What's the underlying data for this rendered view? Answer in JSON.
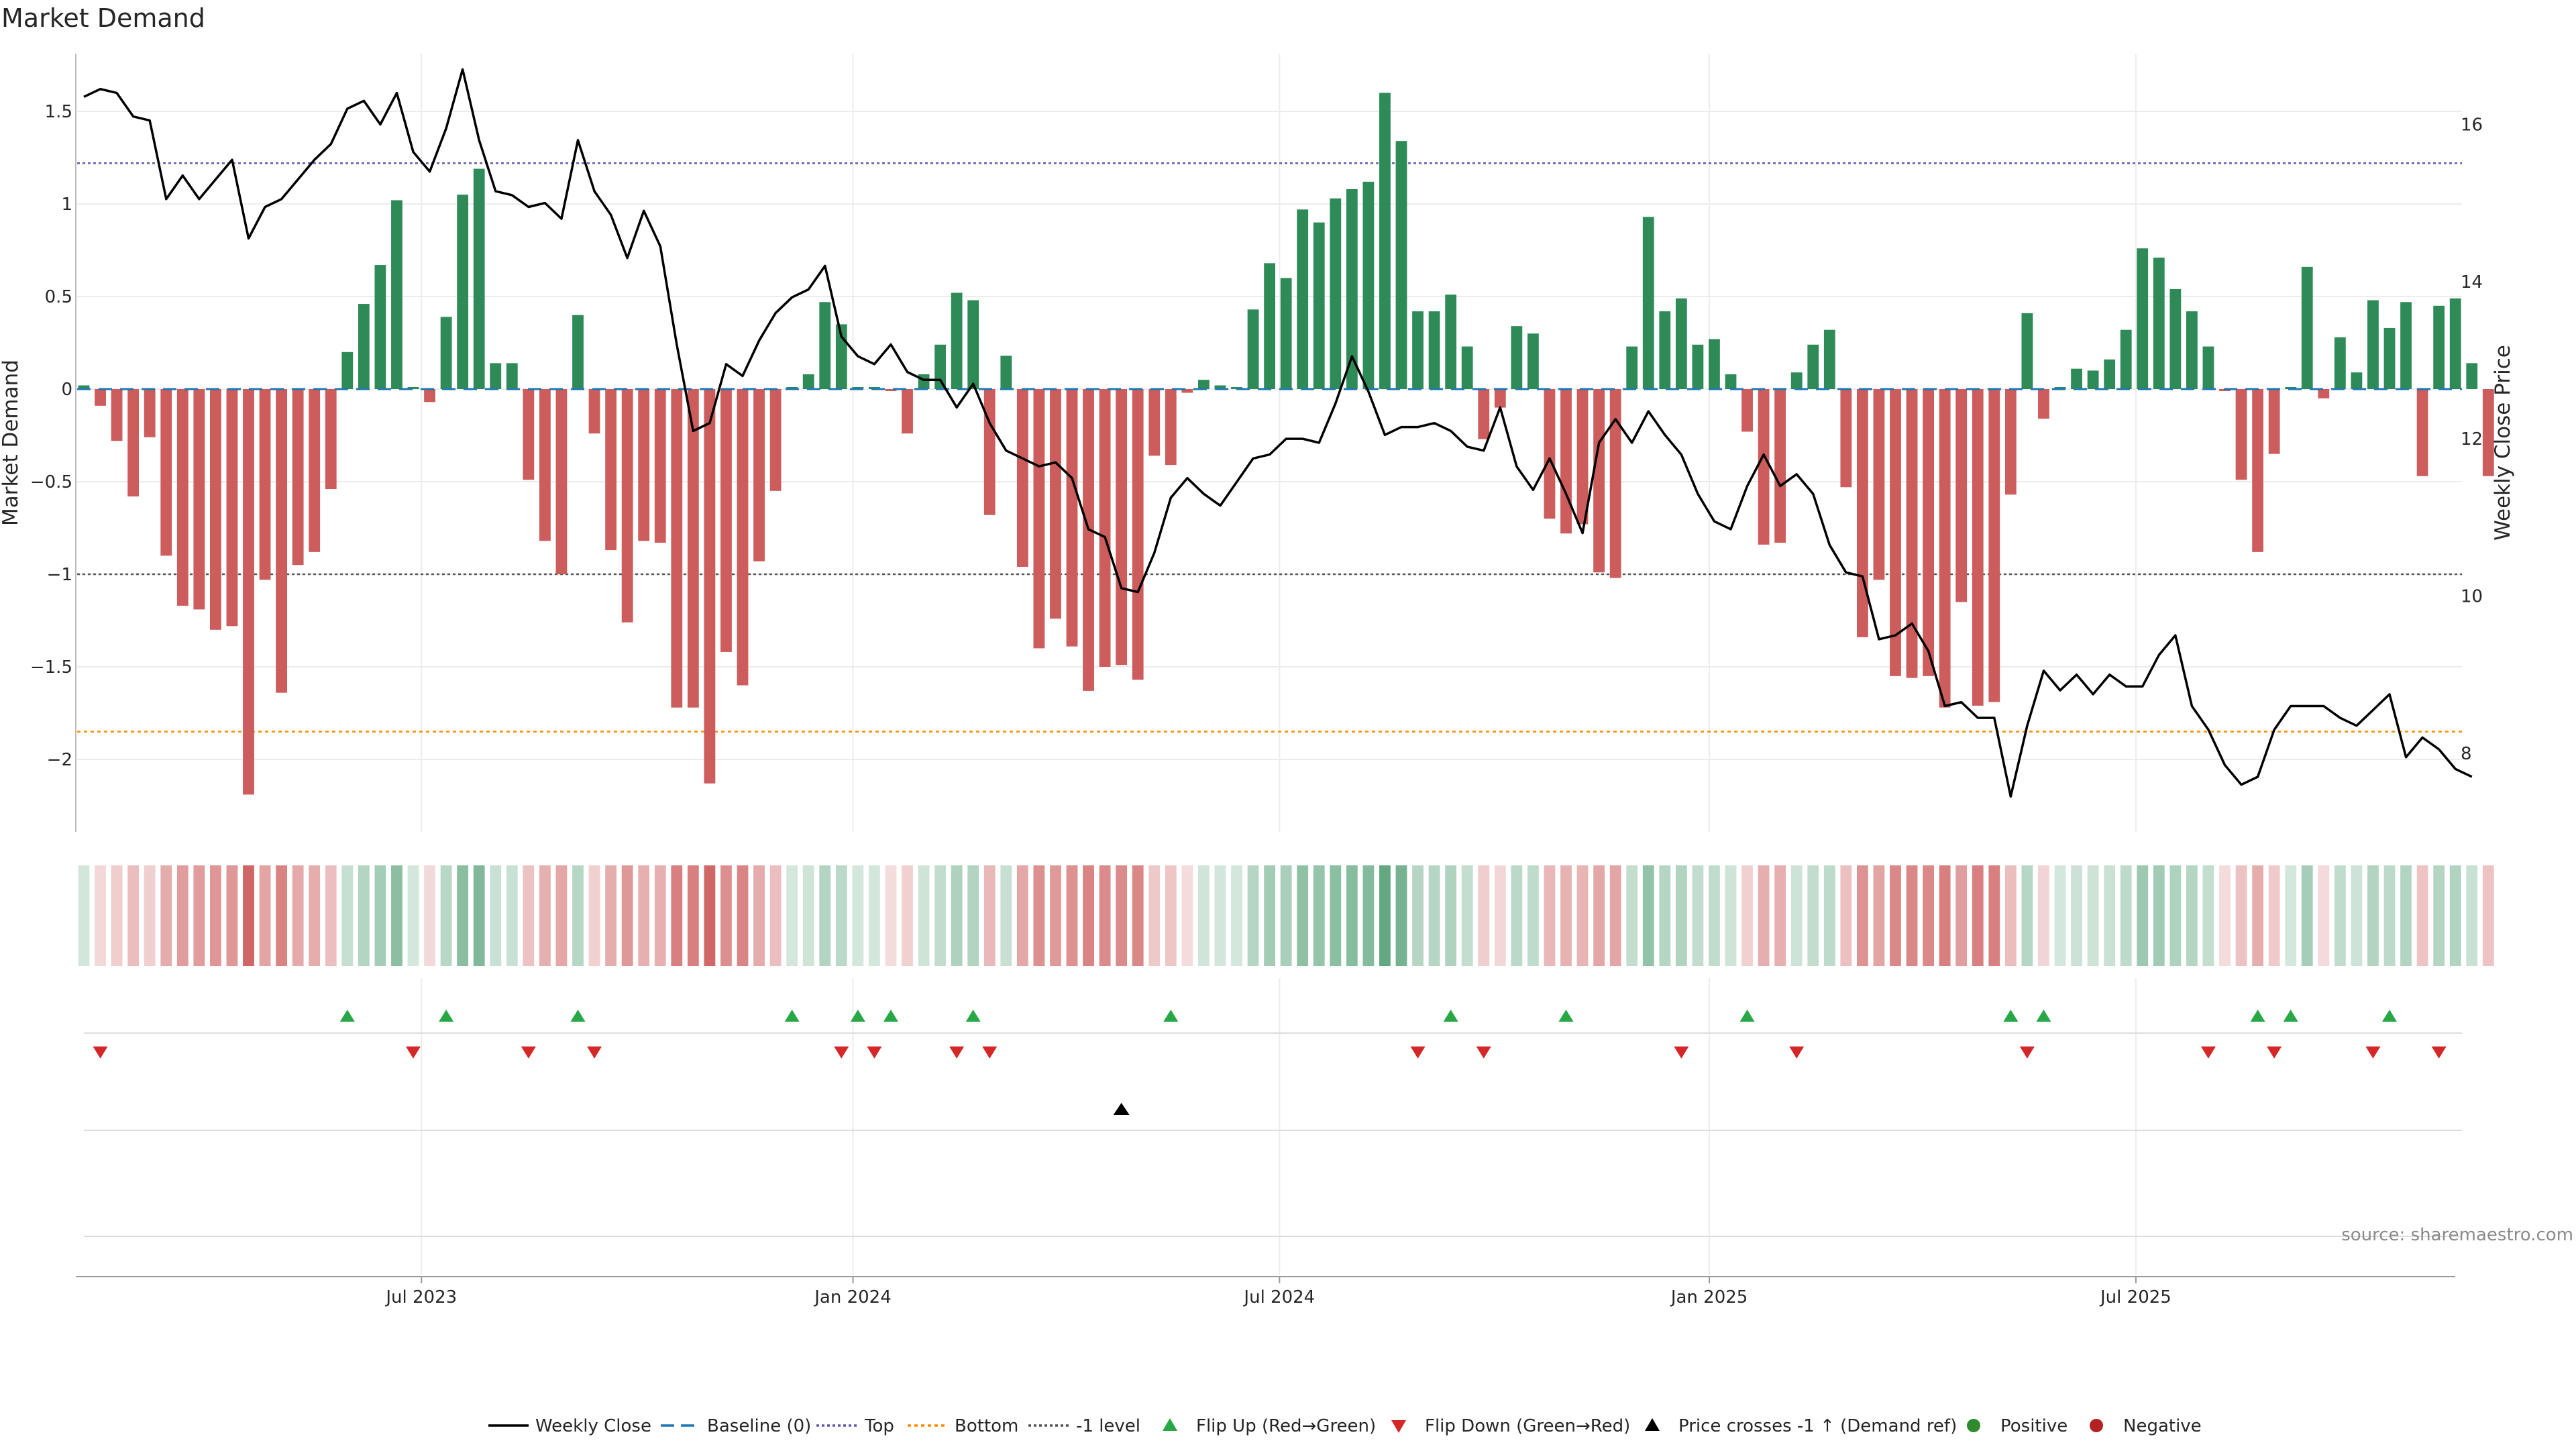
{
  "chart_data": {
    "type": "bar+line",
    "title": "Market Demand",
    "ylabel": "Market Demand",
    "y2label": "Weekly Close Price",
    "ylim": [
      -2.4,
      1.8
    ],
    "y2lim": [
      7.0,
      16.9
    ],
    "yticks": [
      "1.5",
      "1",
      "0.5",
      "0",
      "−0.5",
      "−1",
      "−1.5",
      "−2"
    ],
    "yticks_values": [
      1.5,
      1.0,
      0.5,
      0,
      -0.5,
      -1.0,
      -1.5,
      -2.0
    ],
    "y2ticks": [
      "16",
      "14",
      "12",
      "10",
      "8"
    ],
    "y2ticks_values": [
      16,
      14,
      12,
      10,
      8
    ],
    "xticks": [
      "Jul 2023",
      "Jan 2024",
      "Jul 2024",
      "Jan 2025",
      "Jul 2025"
    ],
    "xticks_week_index": [
      20.5,
      46.7,
      72.6,
      98.7,
      124.6
    ],
    "reference_lines": {
      "top": 1.22,
      "bottom": -1.85,
      "minus_one": -1.0,
      "baseline": 0
    },
    "demand": [
      0.02,
      -0.09,
      -0.28,
      -0.58,
      -0.26,
      -0.9,
      -1.17,
      -1.19,
      -1.3,
      -1.28,
      -2.19,
      -1.03,
      -1.64,
      -0.95,
      -0.88,
      -0.54,
      0.2,
      0.46,
      0.67,
      1.02,
      0,
      -0.07,
      0.39,
      1.05,
      1.19,
      0.14,
      0.14,
      -0.49,
      -0.82,
      -1.0,
      0.4,
      -0.24,
      -0.87,
      -1.26,
      -0.82,
      -0.83,
      -1.72,
      -1.72,
      -2.13,
      -1.42,
      -1.6,
      -0.93,
      -0.55,
      0,
      0.08,
      0.47,
      0.35,
      0,
      0,
      -0.01,
      -0.24,
      0.08,
      0.24,
      0.52,
      0.48,
      -0.68,
      0.18,
      -0.96,
      -1.4,
      -1.24,
      -1.39,
      -1.63,
      -1.5,
      -1.49,
      -1.57,
      -0.36,
      -0.41,
      -0.02,
      0.05,
      0.02,
      0,
      0.43,
      0.68,
      0.6,
      0.97,
      0.9,
      1.03,
      1.08,
      1.12,
      1.6,
      1.34,
      0.42,
      0.42,
      0.51,
      0.23,
      -0.27,
      -0.1,
      0.34,
      0.3,
      -0.7,
      -0.78,
      -0.73,
      -0.99,
      -1.02,
      0.23,
      0.93,
      0.42,
      0.49,
      0.24,
      0.27,
      0.08,
      -0.23,
      -0.84,
      -0.83,
      0.09,
      0.24,
      0.32,
      -0.53,
      -1.34,
      -1.03,
      -1.55,
      -1.56,
      -1.55,
      -1.72,
      -1.15,
      -1.71,
      -1.69,
      -0.57,
      0.41,
      -0.16,
      0,
      0.11,
      0.1,
      0.16,
      0.32,
      0.76,
      0.71,
      0.54,
      0.42,
      0.23,
      -0.01,
      -0.49,
      -0.88,
      -0.35,
      0,
      0.66,
      -0.05,
      0.28,
      0.09,
      0.48,
      0.33,
      0.47,
      -0.47,
      0.45,
      0.49,
      0.14,
      -0.47
    ],
    "weekly_close": [
      16.35,
      16.45,
      16.4,
      16.1,
      16.05,
      15.05,
      15.35,
      15.05,
      15.3,
      15.55,
      14.55,
      14.95,
      15.05,
      15.3,
      15.55,
      15.75,
      16.2,
      16.3,
      16,
      16.4,
      15.65,
      15.4,
      15.95,
      16.7,
      15.8,
      15.15,
      15.1,
      14.95,
      15,
      14.8,
      15.8,
      15.15,
      14.85,
      14.3,
      14.9,
      14.45,
      13.2,
      12.1,
      12.2,
      12.95,
      12.8,
      13.25,
      13.6,
      13.8,
      13.9,
      14.2,
      13.3,
      13.05,
      12.95,
      13.2,
      12.85,
      12.75,
      12.75,
      12.4,
      12.7,
      12.2,
      11.85,
      11.75,
      11.65,
      11.7,
      11.5,
      10.85,
      10.75,
      10.1,
      10.05,
      10.55,
      11.25,
      11.5,
      11.3,
      11.15,
      11.45,
      11.75,
      11.8,
      12,
      12,
      11.95,
      12.45,
      13.05,
      12.6,
      12.05,
      12.15,
      12.15,
      12.2,
      12.1,
      11.9,
      11.85,
      12.4,
      11.65,
      11.35,
      11.75,
      11.3,
      10.8,
      11.95,
      12.25,
      11.95,
      12.35,
      12.05,
      11.8,
      11.3,
      10.95,
      10.85,
      11.4,
      11.8,
      11.4,
      11.55,
      11.3,
      10.65,
      10.3,
      10.25,
      9.45,
      9.5,
      9.65,
      9.3,
      8.6,
      8.65,
      8.45,
      8.45,
      7.45,
      8.35,
      9.05,
      8.8,
      9.0,
      8.75,
      9.0,
      8.85,
      8.85,
      9.25,
      9.5,
      8.6,
      8.3,
      7.85,
      7.6,
      7.7,
      8.3,
      8.6,
      8.6,
      8.6,
      8.45,
      8.35,
      8.55,
      8.75,
      7.95,
      8.2,
      8.05,
      7.8,
      7.7
    ],
    "heat_strip": "per-week colour intensity mirrors the sign and magnitude of market demand",
    "flip_up_weeks": [
      16,
      22,
      30,
      43,
      47,
      49,
      54,
      66,
      83,
      90,
      101,
      117,
      119,
      132,
      134,
      140
    ],
    "flip_down_weeks": [
      1,
      20,
      27,
      31,
      46,
      48,
      53,
      55,
      81,
      85,
      97,
      104,
      118,
      129,
      133,
      139,
      143
    ],
    "price_cross_weeks": [
      63
    ],
    "legend": [
      "Weekly Close",
      "Baseline (0)",
      "Top",
      "Bottom",
      "-1 level",
      "Flip Up (Red→Green)",
      "Flip Down (Green→Red)",
      "Price crosses -1 ↑ (Demand ref)",
      "Positive",
      "Negative"
    ]
  },
  "colors": {
    "positive": "#2e8b57",
    "negative": "#cd5c5c",
    "line": "#000000",
    "baseline": "#1f77b4",
    "top": "#5b5bb5",
    "bottom": "#ff8c00",
    "minus_one": "#555555",
    "flip_up": "#27a745",
    "flip_down": "#d62728",
    "cross": "#000000",
    "legend_positive": "#2e8b2e",
    "legend_negative": "#b22222"
  },
  "source": "source: sharemaestro.com"
}
